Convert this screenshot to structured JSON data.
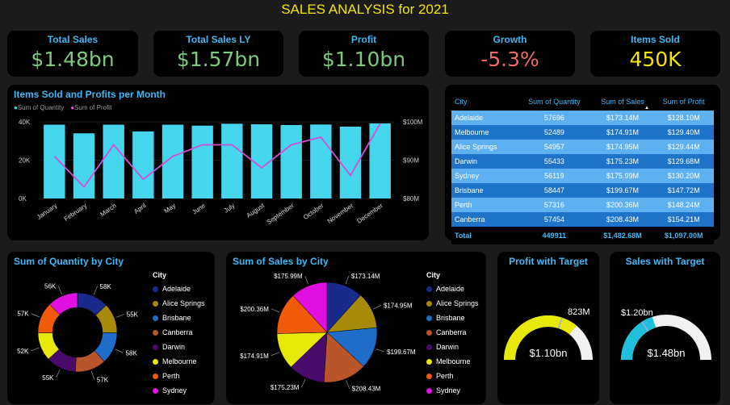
{
  "title": "SALES ANALYSIS for 2021",
  "kpis": [
    {
      "label": "Total Sales",
      "value": "$1.48bn",
      "color": "#7fc97f"
    },
    {
      "label": "Total Sales LY",
      "value": "$1.57bn",
      "color": "#7fc97f"
    },
    {
      "label": "Profit",
      "value": "$1.10bn",
      "color": "#7fc97f"
    },
    {
      "label": "Growth",
      "value": "-5.3%",
      "color": "#f06a6a"
    },
    {
      "label": "Items Sold",
      "value": "450K",
      "color": "#f2e600"
    }
  ],
  "monthly": {
    "title": "Items Sold and Profits per Month",
    "legend": [
      "Sum of Quantity",
      "Sum of Profit"
    ],
    "colors": {
      "bar": "#45d6ee",
      "line": "#d44fd6"
    },
    "left_ticks": [
      "40K",
      "20K",
      "0K"
    ],
    "right_ticks": [
      "$100M",
      "$90M",
      "$80M"
    ],
    "chart_data": {
      "type": "bar",
      "categories": [
        "January",
        "February",
        "March",
        "April",
        "May",
        "June",
        "July",
        "August",
        "September",
        "October",
        "November",
        "December"
      ],
      "series": [
        {
          "name": "Sum of Quantity",
          "values": [
            38500,
            34000,
            38500,
            35000,
            38500,
            38000,
            39000,
            38700,
            38300,
            38600,
            37500,
            39200
          ]
        },
        {
          "name": "Sum of Profit",
          "values": [
            91,
            83,
            94,
            85,
            91,
            94,
            94,
            88,
            94,
            96,
            86,
            99.5
          ]
        }
      ],
      "ylim_left": [
        0,
        40000
      ],
      "ylim_right": [
        80,
        100
      ]
    }
  },
  "city_table": {
    "headers": [
      "City",
      "Sum of Quantity",
      "Sum of Sales",
      "Sum of Profit"
    ],
    "rows": [
      [
        "Adelaide",
        "57696",
        "$173.14M",
        "$128.10M"
      ],
      [
        "Melbourne",
        "52489",
        "$174.91M",
        "$129.40M"
      ],
      [
        "Alice Springs",
        "54957",
        "$174.95M",
        "$129.44M"
      ],
      [
        "Darwin",
        "55433",
        "$175.23M",
        "$129.68M"
      ],
      [
        "Sydney",
        "56119",
        "$175.99M",
        "$130.20M"
      ],
      [
        "Brisbane",
        "58447",
        "$199.67M",
        "$147.72M"
      ],
      [
        "Perth",
        "57316",
        "$200.36M",
        "$148.24M"
      ],
      [
        "Canberra",
        "57454",
        "$208.43M",
        "$154.21M"
      ]
    ],
    "total": [
      "Total",
      "449911",
      "$1,482.68M",
      "$1,097.00M"
    ]
  },
  "qty_donut": {
    "title": "Sum of Quantity by City",
    "chart_data": {
      "type": "pie",
      "labels": [
        "Adelaide",
        "Alice Springs",
        "Brisbane",
        "Canberra",
        "Darwin",
        "Melbourne",
        "Perth",
        "Sydney"
      ],
      "values": [
        58,
        55,
        58,
        57,
        55,
        52,
        57,
        56
      ],
      "data_labels": [
        "58K",
        "55K",
        "58K",
        "57K",
        "55K",
        "52K",
        "57K",
        "56K"
      ]
    }
  },
  "sales_pie": {
    "title": "Sum of Sales by City",
    "chart_data": {
      "type": "pie",
      "labels": [
        "Adelaide",
        "Alice Springs",
        "Brisbane",
        "Canberra",
        "Darwin",
        "Melbourne",
        "Perth",
        "Sydney"
      ],
      "values": [
        173.14,
        174.95,
        199.67,
        208.43,
        175.23,
        174.91,
        200.36,
        175.99
      ],
      "data_labels": [
        "$173.14M",
        "$174.95M",
        "$199.67M",
        "$208.43M",
        "$175.23M",
        "$174.91M",
        "$200.36M",
        "$175.99M"
      ]
    }
  },
  "city_legend": {
    "title": "City",
    "items": [
      "Adelaide",
      "Alice Springs",
      "Brisbane",
      "Canberra",
      "Darwin",
      "Melbourne",
      "Perth",
      "Sydney"
    ],
    "colors": [
      "#1a2a8c",
      "#a88a0a",
      "#1f6dc9",
      "#b8552b",
      "#4a0a6a",
      "#e8e80a",
      "#f05a0a",
      "#e010e0"
    ]
  },
  "profit_gauge": {
    "title": "Profit with Target",
    "value_label": "$1.10bn",
    "target_label": "823M",
    "fill_fraction": 0.72,
    "target_fraction": 0.6,
    "fill_color": "#e8e80a"
  },
  "sales_gauge": {
    "title": "Sales with Target",
    "value_label": "$1.48bn",
    "target_label": "$1.20bn",
    "fill_fraction": 0.4,
    "target_fraction": 0.32,
    "fill_color": "#1ec0dc"
  }
}
